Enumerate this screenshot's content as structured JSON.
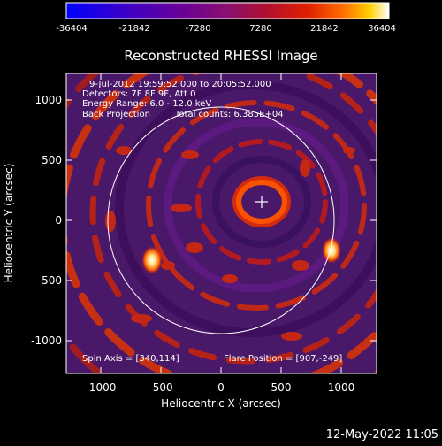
{
  "colorbar": {
    "ticks": [
      "-36404",
      "-21842",
      "-7280",
      "7280",
      "21842",
      "36404"
    ],
    "colors": [
      "#0000ff",
      "#3a00c8",
      "#6a0096",
      "#8a1070",
      "#b01030",
      "#e02000",
      "#ff7000",
      "#ffd000",
      "#ffffff"
    ]
  },
  "plot": {
    "title": "Reconstructed RHESSI Image",
    "xlabel": "Heliocentric X (arcsec)",
    "ylabel": "Heliocentric Y (arcsec)",
    "xticks": [
      "-1000",
      "-500",
      "0",
      "500",
      "1000"
    ],
    "yticks": [
      "1000",
      "500",
      "0",
      "-500",
      "-1000"
    ],
    "xlim": [
      -1300,
      1300
    ],
    "ylim": [
      -1300,
      1300
    ]
  },
  "annotations": {
    "time_range": "9-Jul-2012 19:59:52.000 to 20:05:52.000",
    "detectors": "Detectors: 7F 8F 9F, Att 0",
    "energy": "Energy Range: 6.0 - 12.0 keV",
    "method": "Back Projection",
    "total_counts": "Total counts: 6.385E+04",
    "spin_axis": "Spin Axis = [340,114]",
    "flare_position": "Flare Position = [907,-249]"
  },
  "features": {
    "solar_limb_radius": 940,
    "spin_axis": [
      340,
      114
    ],
    "flare_position": [
      907,
      -249
    ],
    "source_secondary": [
      -560,
      -330
    ],
    "colors": {
      "background": "#5a1a78",
      "limb": "#ffffff",
      "ring": "#d23010",
      "bright": "#ffe080"
    }
  },
  "timestamp": "12-May-2022 11:05"
}
